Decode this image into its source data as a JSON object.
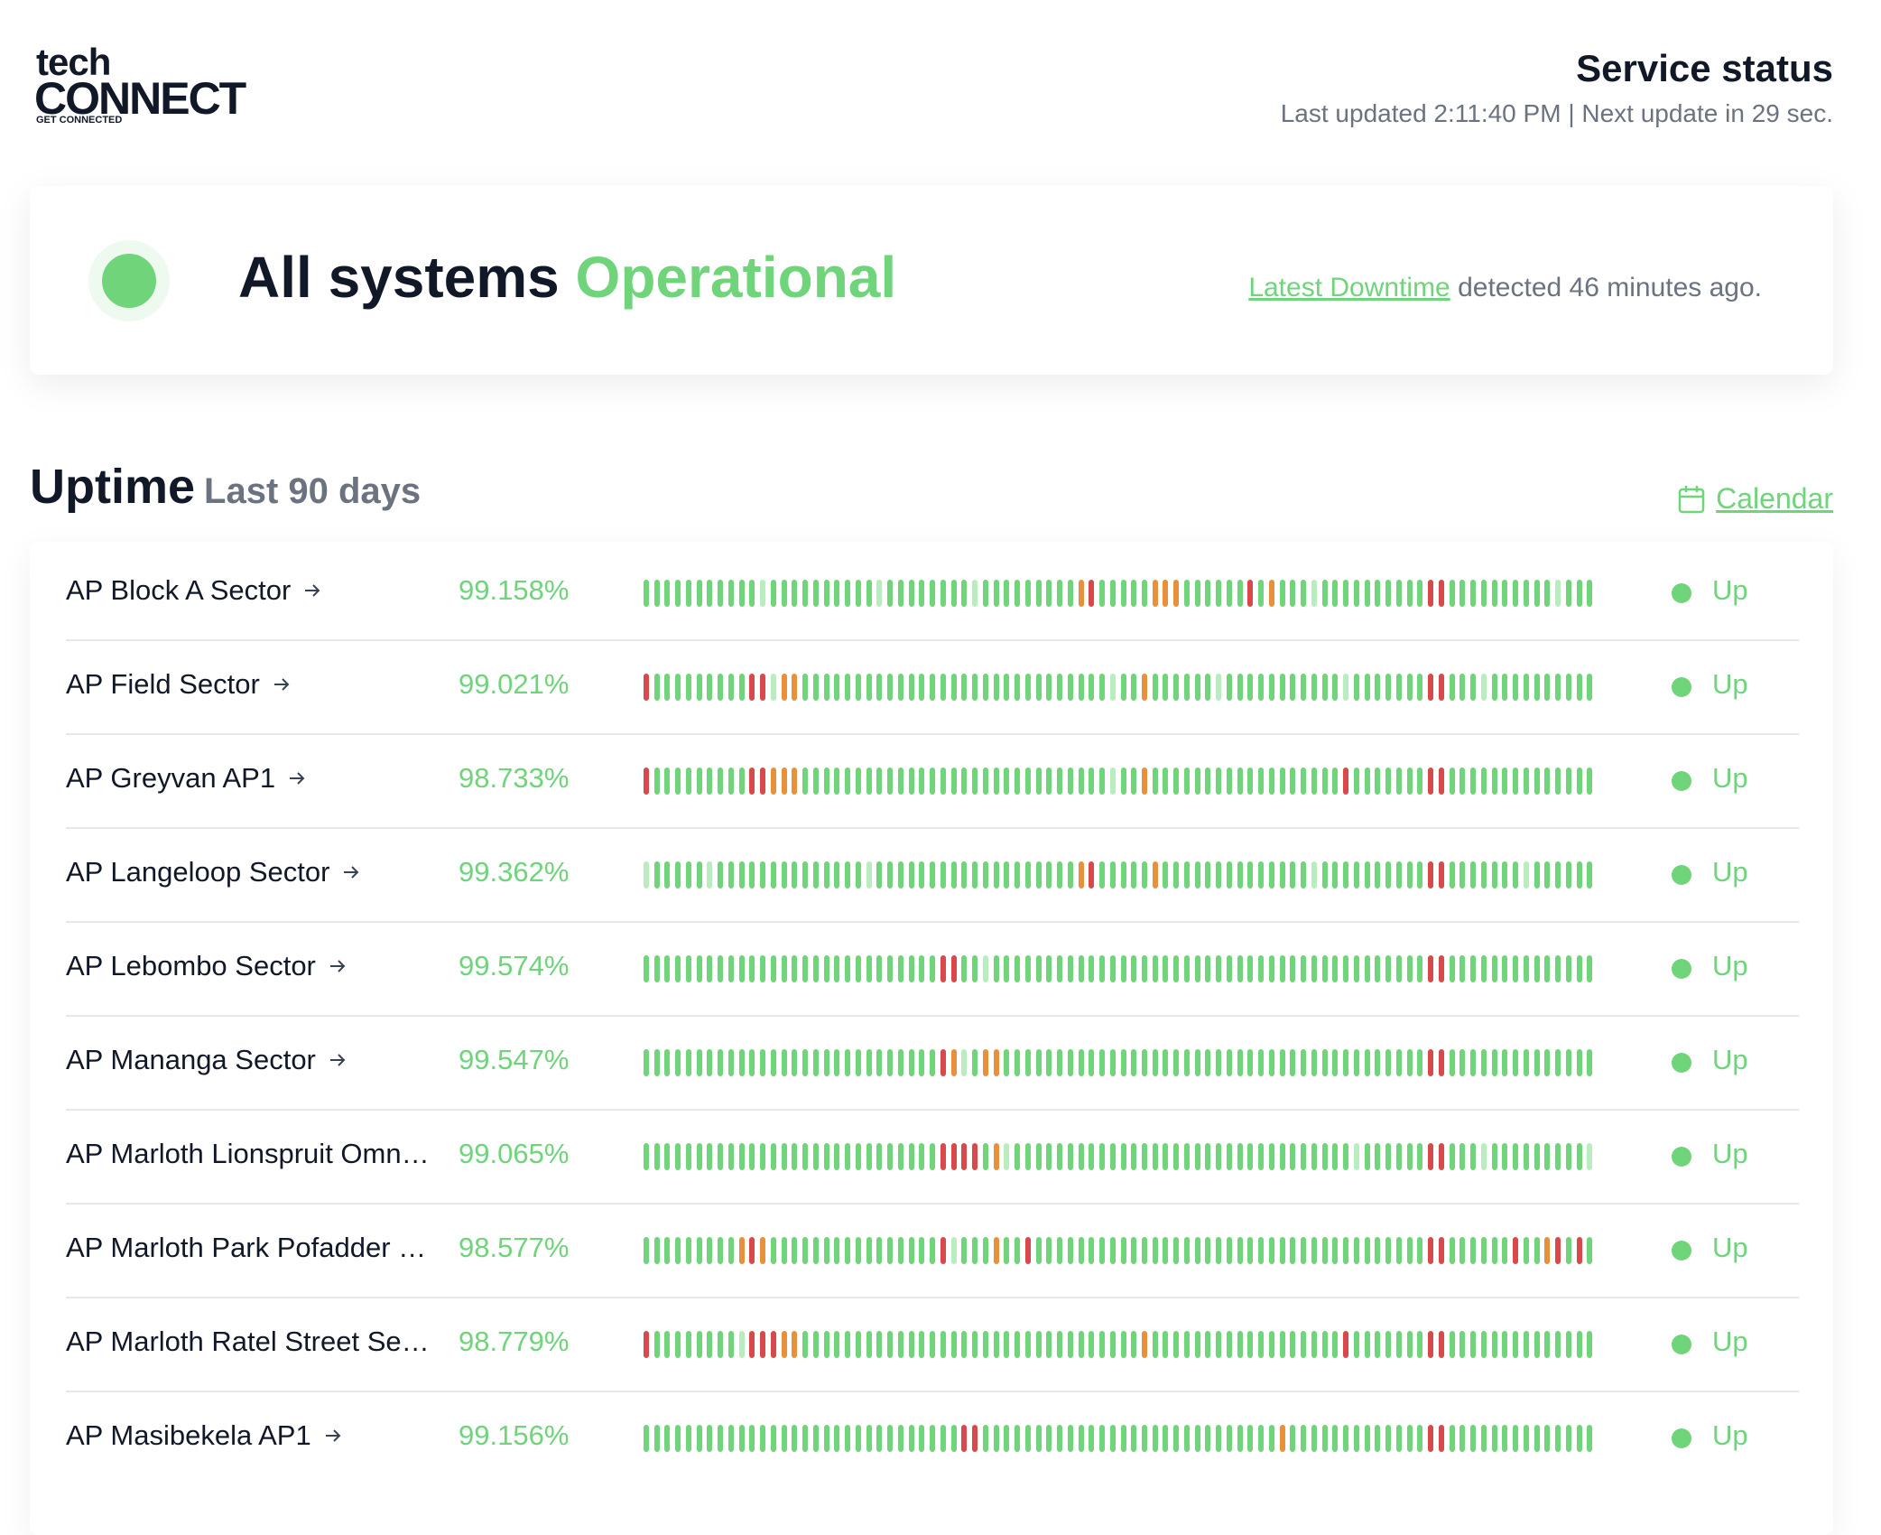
{
  "header": {
    "logo": {
      "top": "tech",
      "main": "CONNECT",
      "tagline": "GET CONNECTED"
    },
    "title": "Service status",
    "last_updated": "Last updated 2:11:40 PM | Next update in 29 sec."
  },
  "status": {
    "prefix": "All systems",
    "state": "Operational",
    "link": "Latest Downtime",
    "detail": "detected 46 minutes ago."
  },
  "uptime": {
    "title": "Uptime",
    "period": "Last 90 days",
    "calendar": "Calendar",
    "day_colors": [
      "#6fd47a",
      "#b9ecbe",
      "#e8913a",
      "#d9484a"
    ],
    "monitors": [
      {
        "name": "AP Block A Sector",
        "uptime": "99.158%",
        "status": "Up",
        "days": [
          0,
          0,
          0,
          0,
          0,
          0,
          0,
          0,
          0,
          0,
          0,
          1,
          0,
          0,
          0,
          0,
          0,
          0,
          0,
          0,
          0,
          0,
          1,
          0,
          0,
          0,
          0,
          0,
          0,
          0,
          0,
          1,
          0,
          0,
          0,
          0,
          0,
          0,
          0,
          0,
          0,
          2,
          3,
          0,
          0,
          0,
          0,
          0,
          2,
          2,
          2,
          0,
          0,
          0,
          0,
          0,
          0,
          3,
          0,
          2,
          0,
          0,
          0,
          1,
          0,
          0,
          0,
          0,
          0,
          0,
          0,
          0,
          0,
          0,
          3,
          3,
          0,
          0,
          0,
          0,
          0,
          0,
          0,
          0,
          0,
          0,
          1,
          0,
          0,
          0
        ]
      },
      {
        "name": "AP Field Sector",
        "uptime": "99.021%",
        "status": "Up",
        "days": [
          3,
          0,
          0,
          0,
          0,
          0,
          0,
          0,
          0,
          0,
          3,
          3,
          1,
          2,
          2,
          0,
          0,
          0,
          0,
          0,
          0,
          0,
          0,
          0,
          0,
          0,
          0,
          0,
          0,
          0,
          0,
          0,
          0,
          0,
          0,
          0,
          0,
          0,
          0,
          0,
          0,
          0,
          0,
          0,
          1,
          0,
          0,
          2,
          0,
          0,
          0,
          0,
          0,
          0,
          1,
          0,
          0,
          0,
          0,
          0,
          0,
          0,
          0,
          0,
          0,
          0,
          1,
          0,
          0,
          0,
          0,
          0,
          0,
          0,
          3,
          3,
          0,
          0,
          0,
          1,
          0,
          0,
          0,
          0,
          0,
          0,
          0,
          0,
          0,
          0
        ]
      },
      {
        "name": "AP Greyvan AP1",
        "uptime": "98.733%",
        "status": "Up",
        "days": [
          3,
          0,
          0,
          0,
          0,
          0,
          0,
          0,
          0,
          0,
          3,
          3,
          2,
          2,
          2,
          0,
          0,
          0,
          0,
          0,
          0,
          0,
          0,
          0,
          0,
          0,
          0,
          0,
          0,
          0,
          0,
          0,
          0,
          0,
          0,
          0,
          0,
          0,
          0,
          0,
          0,
          0,
          0,
          0,
          1,
          0,
          0,
          2,
          0,
          0,
          0,
          0,
          0,
          0,
          0,
          0,
          0,
          0,
          0,
          0,
          0,
          0,
          0,
          0,
          0,
          0,
          3,
          0,
          0,
          0,
          0,
          0,
          0,
          0,
          3,
          3,
          0,
          0,
          0,
          0,
          0,
          0,
          0,
          0,
          0,
          0,
          0,
          0,
          0,
          0
        ]
      },
      {
        "name": "AP Langeloop Sector",
        "uptime": "99.362%",
        "status": "Up",
        "days": [
          1,
          0,
          0,
          0,
          0,
          0,
          1,
          0,
          0,
          0,
          0,
          0,
          0,
          0,
          0,
          0,
          0,
          0,
          0,
          0,
          0,
          1,
          0,
          0,
          0,
          0,
          0,
          0,
          0,
          0,
          0,
          0,
          0,
          0,
          0,
          0,
          0,
          0,
          0,
          0,
          0,
          2,
          3,
          0,
          0,
          0,
          0,
          0,
          2,
          0,
          0,
          0,
          0,
          0,
          0,
          0,
          0,
          0,
          0,
          0,
          0,
          0,
          0,
          1,
          0,
          0,
          0,
          0,
          0,
          0,
          0,
          0,
          0,
          0,
          3,
          3,
          0,
          0,
          0,
          0,
          0,
          0,
          0,
          1,
          0,
          0,
          0,
          0,
          0,
          0
        ]
      },
      {
        "name": "AP Lebombo Sector",
        "uptime": "99.574%",
        "status": "Up",
        "days": [
          0,
          0,
          0,
          0,
          0,
          0,
          0,
          0,
          0,
          0,
          0,
          0,
          0,
          0,
          0,
          0,
          0,
          0,
          0,
          0,
          0,
          0,
          0,
          0,
          0,
          0,
          0,
          0,
          3,
          3,
          0,
          0,
          1,
          0,
          0,
          0,
          0,
          0,
          0,
          0,
          0,
          0,
          0,
          0,
          0,
          0,
          0,
          0,
          0,
          0,
          0,
          0,
          0,
          0,
          0,
          0,
          0,
          0,
          0,
          0,
          0,
          0,
          0,
          0,
          0,
          0,
          0,
          0,
          0,
          0,
          0,
          0,
          0,
          0,
          3,
          3,
          0,
          0,
          0,
          0,
          0,
          0,
          0,
          0,
          0,
          0,
          0,
          0,
          0,
          0
        ]
      },
      {
        "name": "AP Mananga Sector",
        "uptime": "99.547%",
        "status": "Up",
        "days": [
          0,
          0,
          0,
          0,
          0,
          0,
          0,
          0,
          0,
          0,
          0,
          0,
          0,
          0,
          0,
          0,
          0,
          0,
          0,
          0,
          0,
          0,
          0,
          0,
          0,
          0,
          0,
          0,
          3,
          2,
          1,
          0,
          2,
          2,
          0,
          0,
          0,
          0,
          0,
          0,
          0,
          0,
          0,
          0,
          0,
          0,
          0,
          0,
          0,
          0,
          0,
          0,
          0,
          0,
          0,
          0,
          0,
          0,
          0,
          0,
          0,
          0,
          0,
          0,
          0,
          0,
          0,
          0,
          0,
          0,
          0,
          0,
          0,
          0,
          3,
          3,
          0,
          0,
          0,
          0,
          0,
          0,
          0,
          0,
          0,
          0,
          0,
          0,
          0,
          0
        ]
      },
      {
        "name": "AP Marloth Lionspruit Omn…",
        "uptime": "99.065%",
        "status": "Up",
        "days": [
          0,
          0,
          0,
          0,
          0,
          0,
          0,
          0,
          0,
          0,
          0,
          0,
          0,
          0,
          0,
          0,
          0,
          0,
          0,
          0,
          0,
          0,
          0,
          0,
          0,
          0,
          0,
          0,
          3,
          3,
          3,
          3,
          0,
          2,
          1,
          0,
          0,
          0,
          0,
          0,
          0,
          0,
          0,
          0,
          0,
          0,
          0,
          0,
          0,
          0,
          0,
          0,
          0,
          0,
          0,
          0,
          0,
          0,
          0,
          0,
          0,
          0,
          0,
          0,
          0,
          0,
          0,
          1,
          0,
          0,
          0,
          0,
          0,
          0,
          3,
          3,
          0,
          0,
          0,
          1,
          0,
          0,
          0,
          0,
          0,
          0,
          0,
          0,
          0,
          1
        ]
      },
      {
        "name": "AP Marloth Park Pofadder …",
        "uptime": "98.577%",
        "status": "Up",
        "days": [
          0,
          0,
          0,
          0,
          0,
          0,
          0,
          0,
          0,
          2,
          3,
          2,
          0,
          0,
          0,
          0,
          0,
          0,
          0,
          0,
          0,
          0,
          0,
          0,
          0,
          0,
          0,
          0,
          3,
          1,
          0,
          0,
          0,
          2,
          0,
          0,
          3,
          0,
          0,
          0,
          0,
          0,
          0,
          0,
          0,
          0,
          0,
          0,
          0,
          0,
          0,
          0,
          0,
          0,
          0,
          0,
          0,
          0,
          0,
          0,
          0,
          0,
          0,
          0,
          0,
          0,
          0,
          0,
          0,
          0,
          0,
          0,
          0,
          0,
          3,
          3,
          0,
          0,
          0,
          0,
          0,
          0,
          3,
          0,
          0,
          2,
          3,
          0,
          3,
          0
        ]
      },
      {
        "name": "AP Marloth Ratel Street Se…",
        "uptime": "98.779%",
        "status": "Up",
        "days": [
          3,
          0,
          0,
          0,
          0,
          0,
          0,
          0,
          0,
          1,
          3,
          3,
          3,
          2,
          2,
          0,
          0,
          0,
          0,
          0,
          0,
          0,
          0,
          0,
          0,
          0,
          0,
          0,
          0,
          0,
          0,
          0,
          0,
          0,
          0,
          0,
          0,
          0,
          0,
          0,
          0,
          0,
          0,
          0,
          0,
          0,
          0,
          2,
          0,
          0,
          0,
          0,
          0,
          0,
          0,
          0,
          0,
          0,
          0,
          0,
          0,
          0,
          0,
          0,
          0,
          0,
          3,
          0,
          0,
          0,
          0,
          0,
          0,
          0,
          3,
          3,
          0,
          0,
          0,
          0,
          0,
          0,
          0,
          0,
          0,
          0,
          0,
          0,
          0,
          0
        ]
      },
      {
        "name": "AP Masibekela AP1",
        "uptime": "99.156%",
        "status": "Up",
        "days": [
          0,
          0,
          0,
          0,
          0,
          0,
          0,
          0,
          0,
          0,
          0,
          0,
          0,
          0,
          0,
          0,
          0,
          0,
          0,
          0,
          0,
          0,
          0,
          0,
          0,
          0,
          0,
          0,
          0,
          0,
          3,
          3,
          0,
          0,
          0,
          0,
          0,
          0,
          0,
          0,
          0,
          0,
          0,
          0,
          0,
          0,
          0,
          0,
          0,
          0,
          0,
          0,
          0,
          0,
          0,
          0,
          0,
          0,
          0,
          0,
          2,
          0,
          0,
          0,
          0,
          0,
          0,
          0,
          0,
          0,
          0,
          0,
          0,
          0,
          3,
          3,
          0,
          0,
          0,
          0,
          0,
          0,
          0,
          0,
          0,
          0,
          0,
          0,
          0,
          0
        ]
      }
    ]
  }
}
